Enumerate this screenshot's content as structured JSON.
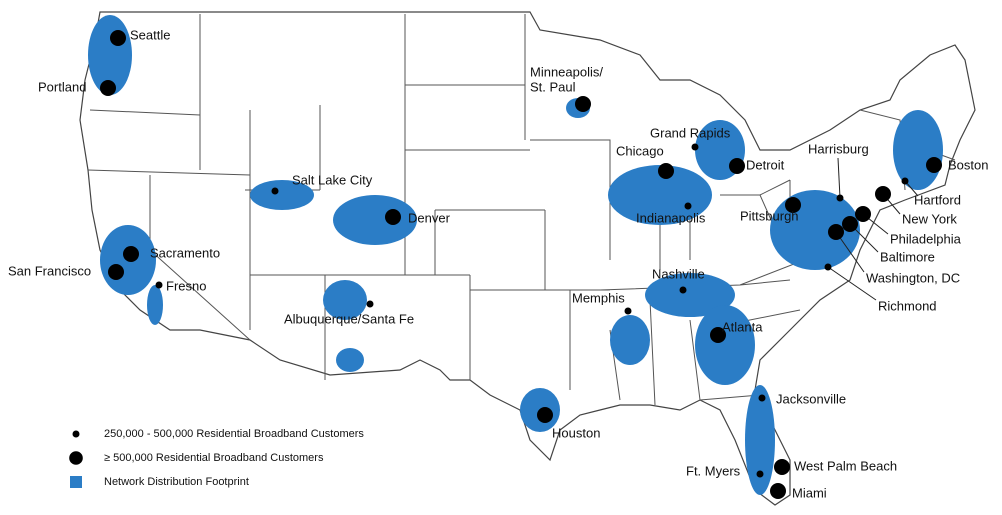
{
  "legend": [
    {
      "label": "250,000 - 500,000 Residential Broadband Customers",
      "cities": [
        "Salt Lake City",
        "Fresno",
        "Albuquerque/Santa Fe",
        "Memphis",
        "Nashville",
        "Indianapolis",
        "Grand Rapids",
        "Harrisburg",
        "Hartford",
        "Richmond",
        "Jacksonville",
        "Ft. Myers"
      ]
    },
    {
      "label": "≥ 500,000 Residential Broadband Customers",
      "cities": [
        "Seattle",
        "Portland",
        "Sacramento",
        "San Francisco",
        "Denver",
        [
          "Minneapolis/",
          "St. Paul"
        ],
        "Chicago",
        "Detroit",
        "Pittsburgh",
        "Boston",
        "New York",
        "Philadelphia",
        "Baltimore",
        "Washington, DC",
        "Atlanta",
        "Houston",
        "West Palm Beach",
        "Miami"
      ]
    },
    {
      "label": "Network Distribution Footprint"
    }
  ]
}
